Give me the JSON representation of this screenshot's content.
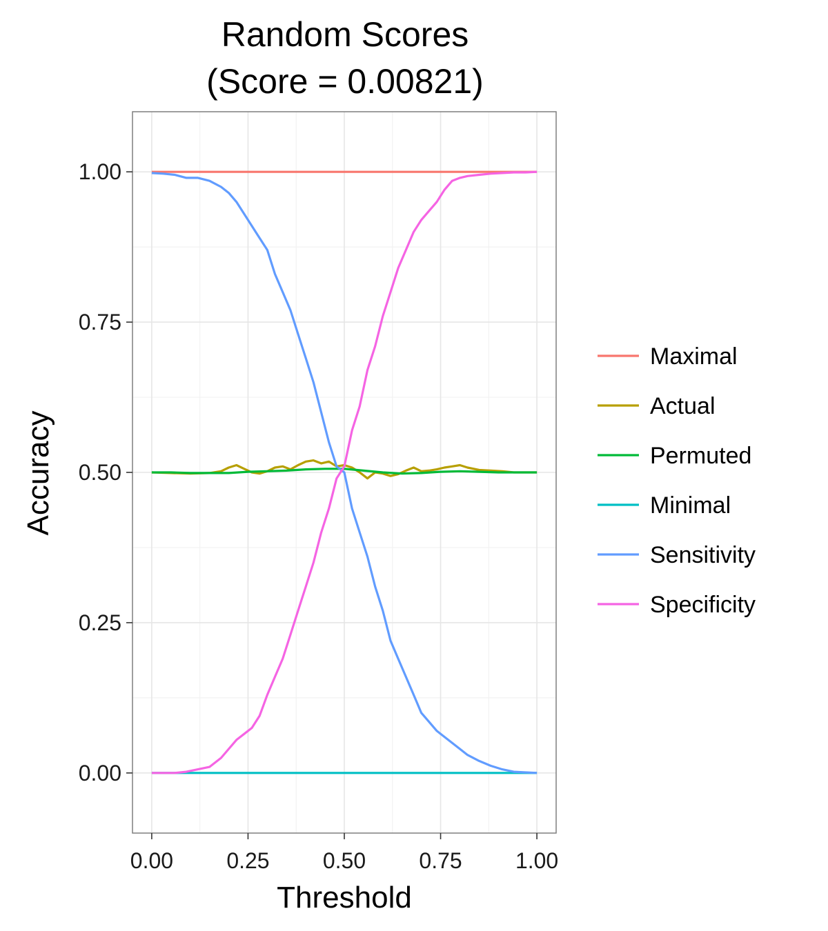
{
  "chart_data": {
    "type": "line",
    "title": "Random Scores",
    "subtitle": "(Score = 0.00821)",
    "xlabel": "Threshold",
    "ylabel": "Accuracy",
    "xlim": [
      -0.05,
      1.05
    ],
    "ylim": [
      -0.1,
      1.1
    ],
    "xticks": [
      "0.00",
      "0.25",
      "0.50",
      "0.75",
      "1.00"
    ],
    "yticks": [
      "0.00",
      "0.25",
      "0.50",
      "0.75",
      "1.00"
    ],
    "grid": true,
    "legend_position": "right",
    "series": [
      {
        "name": "Maximal",
        "color": "#F8766D",
        "x": [
          0.0,
          1.0
        ],
        "y": [
          1.0,
          1.0
        ]
      },
      {
        "name": "Actual",
        "color": "#B79F00",
        "x": [
          0.0,
          0.05,
          0.1,
          0.15,
          0.18,
          0.2,
          0.22,
          0.24,
          0.26,
          0.28,
          0.3,
          0.32,
          0.34,
          0.36,
          0.38,
          0.4,
          0.42,
          0.44,
          0.46,
          0.48,
          0.5,
          0.52,
          0.54,
          0.56,
          0.58,
          0.6,
          0.62,
          0.64,
          0.66,
          0.68,
          0.7,
          0.72,
          0.74,
          0.76,
          0.78,
          0.8,
          0.82,
          0.85,
          0.88,
          0.91,
          0.94,
          0.97,
          1.0
        ],
        "y": [
          0.5,
          0.499,
          0.498,
          0.499,
          0.502,
          0.508,
          0.512,
          0.506,
          0.5,
          0.498,
          0.502,
          0.508,
          0.51,
          0.505,
          0.512,
          0.518,
          0.52,
          0.515,
          0.518,
          0.51,
          0.512,
          0.508,
          0.5,
          0.49,
          0.5,
          0.498,
          0.494,
          0.497,
          0.503,
          0.508,
          0.502,
          0.503,
          0.505,
          0.508,
          0.51,
          0.512,
          0.508,
          0.504,
          0.503,
          0.502,
          0.5,
          0.5,
          0.5
        ]
      },
      {
        "name": "Permuted",
        "color": "#00BA38",
        "x": [
          0.0,
          0.05,
          0.1,
          0.15,
          0.2,
          0.25,
          0.3,
          0.35,
          0.4,
          0.45,
          0.5,
          0.55,
          0.6,
          0.65,
          0.7,
          0.75,
          0.8,
          0.85,
          0.9,
          0.95,
          1.0
        ],
        "y": [
          0.5,
          0.5,
          0.499,
          0.499,
          0.499,
          0.501,
          0.502,
          0.503,
          0.505,
          0.506,
          0.506,
          0.503,
          0.5,
          0.498,
          0.499,
          0.501,
          0.502,
          0.501,
          0.5,
          0.5,
          0.5
        ]
      },
      {
        "name": "Minimal",
        "color": "#00BFC4",
        "x": [
          0.0,
          1.0
        ],
        "y": [
          0.0,
          0.0
        ]
      },
      {
        "name": "Sensitivity",
        "color": "#619CFF",
        "x": [
          0.0,
          0.03,
          0.06,
          0.09,
          0.12,
          0.15,
          0.18,
          0.2,
          0.22,
          0.24,
          0.26,
          0.28,
          0.3,
          0.32,
          0.34,
          0.36,
          0.38,
          0.4,
          0.42,
          0.44,
          0.46,
          0.48,
          0.5,
          0.52,
          0.54,
          0.56,
          0.58,
          0.6,
          0.62,
          0.64,
          0.66,
          0.68,
          0.7,
          0.72,
          0.74,
          0.76,
          0.78,
          0.8,
          0.82,
          0.85,
          0.88,
          0.91,
          0.94,
          0.97,
          1.0
        ],
        "y": [
          0.998,
          0.997,
          0.995,
          0.99,
          0.99,
          0.985,
          0.975,
          0.965,
          0.95,
          0.93,
          0.91,
          0.89,
          0.87,
          0.83,
          0.8,
          0.77,
          0.73,
          0.69,
          0.65,
          0.6,
          0.55,
          0.51,
          0.5,
          0.44,
          0.4,
          0.36,
          0.31,
          0.27,
          0.22,
          0.19,
          0.16,
          0.13,
          0.1,
          0.085,
          0.07,
          0.06,
          0.05,
          0.04,
          0.03,
          0.02,
          0.012,
          0.006,
          0.002,
          0.001,
          0.0
        ]
      },
      {
        "name": "Specificity",
        "color": "#F564E3",
        "x": [
          0.0,
          0.03,
          0.06,
          0.09,
          0.12,
          0.15,
          0.18,
          0.2,
          0.22,
          0.24,
          0.26,
          0.28,
          0.3,
          0.32,
          0.34,
          0.36,
          0.38,
          0.4,
          0.42,
          0.44,
          0.46,
          0.48,
          0.5,
          0.52,
          0.54,
          0.56,
          0.58,
          0.6,
          0.62,
          0.64,
          0.66,
          0.68,
          0.7,
          0.72,
          0.74,
          0.76,
          0.78,
          0.8,
          0.82,
          0.85,
          0.88,
          0.91,
          0.94,
          0.97,
          1.0
        ],
        "y": [
          0.0,
          0.0,
          0.0,
          0.002,
          0.006,
          0.01,
          0.025,
          0.04,
          0.055,
          0.065,
          0.075,
          0.095,
          0.13,
          0.16,
          0.19,
          0.23,
          0.27,
          0.31,
          0.35,
          0.4,
          0.44,
          0.49,
          0.51,
          0.57,
          0.61,
          0.67,
          0.71,
          0.76,
          0.8,
          0.84,
          0.87,
          0.9,
          0.92,
          0.935,
          0.95,
          0.97,
          0.985,
          0.99,
          0.993,
          0.995,
          0.997,
          0.998,
          0.999,
          0.999,
          1.0
        ]
      }
    ]
  }
}
